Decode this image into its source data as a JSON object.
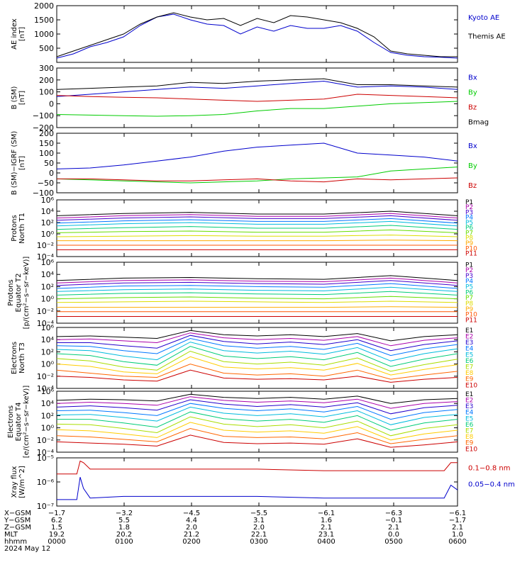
{
  "colors": {
    "black": "#000000",
    "blue": "#0000cc",
    "green": "#00cc00",
    "red": "#cc0000",
    "proton_ramp": [
      "#000000",
      "#aa00aa",
      "#4400cc",
      "#0077ff",
      "#00bbdd",
      "#00cc77",
      "#66dd00",
      "#dddd00",
      "#ffaa00",
      "#ff5500",
      "#cc0000"
    ],
    "electron_ramp": [
      "#000000",
      "#aa00aa",
      "#2200cc",
      "#0077ff",
      "#00bbdd",
      "#00cc77",
      "#aadd00",
      "#ffcc00",
      "#ff6600",
      "#cc0000"
    ]
  },
  "chart_data": [
    {
      "type": "line",
      "ylabel": "AE index\n[nT]",
      "yticks": [
        "2000",
        "1500",
        "1000",
        "500"
      ],
      "ylim": [
        0,
        2000
      ],
      "x": [
        0,
        0.25,
        0.5,
        0.75,
        1,
        1.25,
        1.5,
        1.75,
        2,
        2.25,
        2.5,
        2.75,
        3,
        3.25,
        3.5,
        3.75,
        4,
        4.25,
        4.5,
        4.75,
        5,
        5.25,
        5.5,
        5.75,
        6
      ],
      "series": [
        {
          "name": "Kyoto AE",
          "color": "#0000cc",
          "values": [
            150,
            300,
            550,
            700,
            900,
            1300,
            1600,
            1700,
            1500,
            1350,
            1300,
            1000,
            1250,
            1100,
            1300,
            1200,
            1200,
            1300,
            1100,
            700,
            350,
            250,
            200,
            180,
            150
          ]
        },
        {
          "name": "Themis AE",
          "color": "#000000",
          "values": [
            200,
            400,
            600,
            800,
            1000,
            1350,
            1600,
            1750,
            1600,
            1500,
            1550,
            1300,
            1550,
            1400,
            1650,
            1600,
            1500,
            1400,
            1200,
            900,
            400,
            300,
            250,
            200,
            200
          ]
        }
      ]
    },
    {
      "type": "line",
      "ylabel": "B (SM)\n[nT]",
      "yticks": [
        "300",
        "200",
        "100",
        "0",
        "−100",
        "−200"
      ],
      "ylim": [
        -200,
        300
      ],
      "x": [
        0,
        0.5,
        1,
        1.5,
        2,
        2.5,
        3,
        3.5,
        4,
        4.5,
        5,
        5.5,
        6
      ],
      "series": [
        {
          "name": "Bx",
          "color": "#0000cc",
          "values": [
            60,
            80,
            100,
            120,
            140,
            130,
            150,
            170,
            190,
            140,
            150,
            140,
            120
          ]
        },
        {
          "name": "By",
          "color": "#00cc00",
          "values": [
            -90,
            -95,
            -100,
            -105,
            -100,
            -90,
            -60,
            -40,
            -40,
            -20,
            0,
            10,
            20
          ]
        },
        {
          "name": "Bz",
          "color": "#cc0000",
          "values": [
            70,
            60,
            55,
            50,
            40,
            30,
            20,
            30,
            40,
            80,
            70,
            60,
            50
          ]
        },
        {
          "name": "Bmag",
          "color": "#000000",
          "values": [
            120,
            130,
            140,
            150,
            180,
            170,
            190,
            200,
            210,
            160,
            160,
            150,
            140
          ]
        }
      ]
    },
    {
      "type": "line",
      "ylabel": "B (SM)−IGRF (SM)\n[nT]",
      "yticks": [
        "200",
        "150",
        "100",
        "50",
        "0",
        "−50",
        "−100"
      ],
      "ylim": [
        -100,
        200
      ],
      "x": [
        0,
        0.5,
        1,
        1.5,
        2,
        2.5,
        3,
        3.5,
        4,
        4.5,
        5,
        5.5,
        6
      ],
      "series": [
        {
          "name": "Bx",
          "color": "#0000cc",
          "values": [
            20,
            25,
            40,
            60,
            80,
            110,
            130,
            140,
            150,
            100,
            90,
            80,
            60
          ]
        },
        {
          "name": "By",
          "color": "#00cc00",
          "values": [
            -30,
            -35,
            -40,
            -45,
            -50,
            -45,
            -40,
            -30,
            -25,
            -20,
            10,
            20,
            30
          ]
        },
        {
          "name": "Bz",
          "color": "#cc0000",
          "values": [
            -30,
            -30,
            -35,
            -40,
            -40,
            -35,
            -30,
            -40,
            -45,
            -30,
            -35,
            -30,
            -25
          ]
        }
      ]
    },
    {
      "type": "line",
      "ylabel": "Protons\nNorth T1",
      "log": true,
      "yticks": [
        "10⁶",
        "10⁴",
        "10²",
        "10⁰",
        "10⁻²",
        "10⁻⁴"
      ],
      "ylim": [
        -4,
        6
      ],
      "x": [
        0,
        1,
        2,
        3,
        4,
        5,
        6
      ],
      "series": [
        {
          "name": "P1",
          "values": [
            3.2,
            3.6,
            3.8,
            3.5,
            3.5,
            4.0,
            3.2
          ]
        },
        {
          "name": "P2",
          "values": [
            2.8,
            3.2,
            3.4,
            3.1,
            3.1,
            3.6,
            2.8
          ]
        },
        {
          "name": "P3",
          "values": [
            2.4,
            2.8,
            3.0,
            2.7,
            2.7,
            3.2,
            2.4
          ]
        },
        {
          "name": "P4",
          "values": [
            1.9,
            2.3,
            2.5,
            2.2,
            2.2,
            2.7,
            1.9
          ]
        },
        {
          "name": "P5",
          "values": [
            1.4,
            1.8,
            2.0,
            1.7,
            1.7,
            2.2,
            1.4
          ]
        },
        {
          "name": "P6",
          "values": [
            0.8,
            1.1,
            1.3,
            1.0,
            1.0,
            1.5,
            0.8
          ]
        },
        {
          "name": "P7",
          "values": [
            0.2,
            0.4,
            0.5,
            0.3,
            0.3,
            0.7,
            0.2
          ]
        },
        {
          "name": "P8",
          "values": [
            -0.5,
            -0.4,
            -0.3,
            -0.4,
            -0.4,
            -0.2,
            -0.5
          ]
        },
        {
          "name": "P9",
          "values": [
            -1.2,
            -1.2,
            -1.2,
            -1.2,
            -1.2,
            -1.1,
            -1.2
          ]
        },
        {
          "name": "P10",
          "values": [
            -2.0,
            -2.0,
            -2.0,
            -2.0,
            -2.0,
            -2.0,
            -2.0
          ]
        },
        {
          "name": "P11",
          "values": [
            -2.8,
            -2.8,
            -2.8,
            -2.8,
            -2.8,
            -2.8,
            -2.8
          ]
        }
      ]
    },
    {
      "type": "line",
      "ylabel": "Protons\nEquator T2\n[p/(cm²−s−sr−keV)]",
      "log": true,
      "yticks": [
        "10⁶",
        "10⁴",
        "10²",
        "10⁰",
        "10⁻²",
        "10⁻⁴"
      ],
      "ylim": [
        -4,
        6
      ],
      "x": [
        0,
        1,
        2,
        3,
        4,
        5,
        6
      ],
      "series": [
        {
          "name": "P1",
          "values": [
            3.0,
            3.4,
            3.5,
            3.3,
            3.2,
            3.8,
            3.0
          ]
        },
        {
          "name": "P2",
          "values": [
            2.6,
            3.0,
            3.1,
            2.9,
            2.8,
            3.4,
            2.6
          ]
        },
        {
          "name": "P3",
          "values": [
            2.2,
            2.6,
            2.7,
            2.5,
            2.4,
            3.0,
            2.2
          ]
        },
        {
          "name": "P4",
          "values": [
            1.7,
            2.1,
            2.2,
            2.0,
            1.9,
            2.5,
            1.7
          ]
        },
        {
          "name": "P5",
          "values": [
            1.2,
            1.5,
            1.6,
            1.4,
            1.3,
            1.9,
            1.2
          ]
        },
        {
          "name": "P6",
          "values": [
            0.6,
            0.9,
            1.0,
            0.8,
            0.7,
            1.2,
            0.6
          ]
        },
        {
          "name": "P7",
          "values": [
            0.0,
            0.2,
            0.3,
            0.1,
            0.0,
            0.4,
            0.0
          ]
        },
        {
          "name": "P8",
          "values": [
            -0.6,
            -0.5,
            -0.4,
            -0.5,
            -0.6,
            -0.4,
            -0.6
          ]
        },
        {
          "name": "P9",
          "values": [
            -1.4,
            -1.4,
            -1.4,
            -1.4,
            -1.4,
            -1.3,
            -1.4
          ]
        },
        {
          "name": "P10",
          "values": [
            -2.1,
            -2.1,
            -2.1,
            -2.1,
            -2.1,
            -2.1,
            -2.1
          ]
        },
        {
          "name": "P11",
          "values": [
            -2.9,
            -2.9,
            -2.9,
            -2.9,
            -2.9,
            -2.9,
            -2.9
          ]
        }
      ]
    },
    {
      "type": "line",
      "ylabel": "Electrons\nNorth T3",
      "log": true,
      "yticks": [
        "10⁶",
        "10⁴",
        "10²",
        "10⁰",
        "10⁻²",
        "10⁻⁴"
      ],
      "ylim": [
        -4,
        6
      ],
      "x": [
        0,
        0.5,
        1,
        1.5,
        2,
        2.5,
        3,
        3.5,
        4,
        4.5,
        5,
        5.5,
        6
      ],
      "series": [
        {
          "name": "E1",
          "values": [
            4.5,
            4.6,
            4.4,
            4.2,
            5.5,
            4.8,
            4.6,
            4.8,
            4.5,
            5.0,
            3.8,
            4.5,
            4.8
          ]
        },
        {
          "name": "E2",
          "values": [
            4.0,
            4.1,
            3.8,
            3.5,
            5.1,
            4.3,
            4.0,
            4.2,
            3.9,
            4.5,
            3.0,
            3.9,
            4.3
          ]
        },
        {
          "name": "E3",
          "values": [
            3.5,
            3.5,
            3.0,
            2.6,
            4.7,
            3.7,
            3.3,
            3.6,
            3.2,
            4.0,
            2.2,
            3.2,
            3.8
          ]
        },
        {
          "name": "E4",
          "values": [
            3.0,
            2.9,
            2.2,
            1.7,
            4.2,
            3.0,
            2.6,
            2.9,
            2.4,
            3.4,
            1.4,
            2.5,
            3.2
          ]
        },
        {
          "name": "E5",
          "values": [
            2.4,
            2.2,
            1.3,
            0.7,
            3.6,
            2.2,
            1.8,
            2.1,
            1.6,
            2.7,
            0.5,
            1.7,
            2.5
          ]
        },
        {
          "name": "E6",
          "values": [
            1.7,
            1.4,
            0.4,
            -0.2,
            2.9,
            1.3,
            0.9,
            1.2,
            0.7,
            1.9,
            -0.4,
            0.8,
            1.7
          ]
        },
        {
          "name": "E7",
          "values": [
            0.9,
            0.5,
            -0.5,
            -1.0,
            2.1,
            0.4,
            0.0,
            0.3,
            -0.2,
            1.0,
            -1.2,
            -0.1,
            0.8
          ]
        },
        {
          "name": "E8",
          "values": [
            0.0,
            -0.4,
            -1.3,
            -1.6,
            1.2,
            -0.5,
            -0.8,
            -0.6,
            -1.0,
            0.1,
            -1.8,
            -0.9,
            -0.1
          ]
        },
        {
          "name": "E9",
          "values": [
            -1.0,
            -1.5,
            -2.0,
            -2.2,
            0.0,
            -1.5,
            -1.8,
            -1.6,
            -2.0,
            -1.0,
            -2.5,
            -1.8,
            -1.2
          ]
        },
        {
          "name": "E10",
          "values": [
            -2.0,
            -2.2,
            -2.6,
            -2.8,
            -1.0,
            -2.3,
            -2.5,
            -2.4,
            -2.6,
            -2.0,
            -3.0,
            -2.5,
            -2.2
          ]
        }
      ]
    },
    {
      "type": "line",
      "ylabel": "Electrons\nEquator T4\n[e/(cm²−s−sr−keV)]",
      "log": true,
      "yticks": [
        "10⁶",
        "10⁴",
        "10²",
        "10⁰",
        "10⁻²",
        "10⁻⁴"
      ],
      "ylim": [
        -4,
        6
      ],
      "x": [
        0,
        0.5,
        1,
        1.5,
        2,
        2.5,
        3,
        3.5,
        4,
        4.5,
        5,
        5.5,
        6
      ],
      "series": [
        {
          "name": "E1",
          "values": [
            4.5,
            4.7,
            4.6,
            4.4,
            5.5,
            5.0,
            4.8,
            5.0,
            4.7,
            5.2,
            4.0,
            4.6,
            4.8
          ]
        },
        {
          "name": "E2",
          "values": [
            4.0,
            4.2,
            4.0,
            3.7,
            5.1,
            4.5,
            4.2,
            4.4,
            4.1,
            4.7,
            3.2,
            4.0,
            4.3
          ]
        },
        {
          "name": "E3",
          "values": [
            3.4,
            3.6,
            3.3,
            2.9,
            4.6,
            3.9,
            3.5,
            3.8,
            3.4,
            4.1,
            2.3,
            3.3,
            3.7
          ]
        },
        {
          "name": "E4",
          "values": [
            2.8,
            2.9,
            2.5,
            2.0,
            4.0,
            3.2,
            2.8,
            3.1,
            2.6,
            3.5,
            1.4,
            2.5,
            3.0
          ]
        },
        {
          "name": "E5",
          "values": [
            2.1,
            2.2,
            1.7,
            1.1,
            3.4,
            2.4,
            2.0,
            2.3,
            1.8,
            2.8,
            0.5,
            1.7,
            2.2
          ]
        },
        {
          "name": "E6",
          "values": [
            1.4,
            1.4,
            0.8,
            0.1,
            2.6,
            1.5,
            1.1,
            1.4,
            0.9,
            2.0,
            -0.4,
            0.8,
            1.4
          ]
        },
        {
          "name": "E7",
          "values": [
            0.6,
            0.5,
            -0.1,
            -0.8,
            1.8,
            0.6,
            0.2,
            0.5,
            0.0,
            1.1,
            -1.3,
            -0.1,
            0.5
          ]
        },
        {
          "name": "E8",
          "values": [
            -0.3,
            -0.5,
            -1.0,
            -1.6,
            0.9,
            -0.4,
            -0.7,
            -0.5,
            -0.9,
            0.2,
            -2.0,
            -1.0,
            -0.4
          ]
        },
        {
          "name": "E9",
          "values": [
            -1.3,
            -1.5,
            -1.9,
            -2.3,
            -0.1,
            -1.4,
            -1.6,
            -1.5,
            -1.8,
            -0.8,
            -2.6,
            -1.9,
            -1.3
          ]
        },
        {
          "name": "E10",
          "values": [
            -2.3,
            -2.5,
            -2.7,
            -3.0,
            -1.2,
            -2.4,
            -2.6,
            -2.5,
            -2.7,
            -1.8,
            -3.2,
            -2.8,
            -2.3
          ]
        }
      ]
    },
    {
      "type": "line",
      "ylabel": "Xray flux\n[W/m^2]",
      "log": true,
      "yticks": [
        "10⁻⁵",
        "10⁻⁶",
        "10⁻⁷"
      ],
      "ylim": [
        -7.5,
        -4.5
      ],
      "x": [
        0,
        0.2,
        0.3,
        0.35,
        0.4,
        0.5,
        1,
        2,
        3,
        4,
        5,
        5.8,
        5.9,
        6
      ],
      "series": [
        {
          "name": "0.1−0.8 nm",
          "color": "#cc0000",
          "values": [
            -5.5,
            -5.5,
            -5.5,
            -4.7,
            -4.8,
            -5.2,
            -5.2,
            -5.2,
            -5.2,
            -5.3,
            -5.3,
            -5.3,
            -4.8,
            -4.8
          ]
        },
        {
          "name": "0.05−0.4 nm",
          "color": "#0000cc",
          "values": [
            -7.1,
            -7.1,
            -7.1,
            -5.7,
            -6.4,
            -7.0,
            -6.9,
            -6.9,
            -6.9,
            -7.0,
            -7.0,
            -7.0,
            -6.2,
            -6.5
          ]
        }
      ]
    }
  ],
  "proton_labels": [
    "P1",
    "P2",
    "P3",
    "P4",
    "P5",
    "P6",
    "P7",
    "P8",
    "P9",
    "P10",
    "P11"
  ],
  "electron_labels": [
    "E1",
    "E2",
    "E3",
    "E4",
    "E5",
    "E6",
    "E7",
    "E8",
    "E9",
    "E10"
  ],
  "info": {
    "labels": [
      "X−GSM",
      "Y−GSM",
      "Z−GSM",
      "MLT",
      "hhmm"
    ],
    "date": "2024 May 12",
    "columns": [
      [
        "−1.7",
        "6.2",
        "1.5",
        "19.2",
        "0000"
      ],
      [
        "−3.2",
        "5.5",
        "1.8",
        "20.2",
        "0100"
      ],
      [
        "−4.5",
        "4.4",
        "2.0",
        "21.2",
        "0200"
      ],
      [
        "−5.5",
        "3.1",
        "2.0",
        "22.1",
        "0300"
      ],
      [
        "−6.1",
        "1.6",
        "2.1",
        "23.1",
        "0400"
      ],
      [
        "−6.3",
        "−0.1",
        "2.1",
        "0.0",
        "0500"
      ],
      [
        "−6.1",
        "−1.7",
        "2.1",
        "1.0",
        "0600"
      ]
    ]
  }
}
